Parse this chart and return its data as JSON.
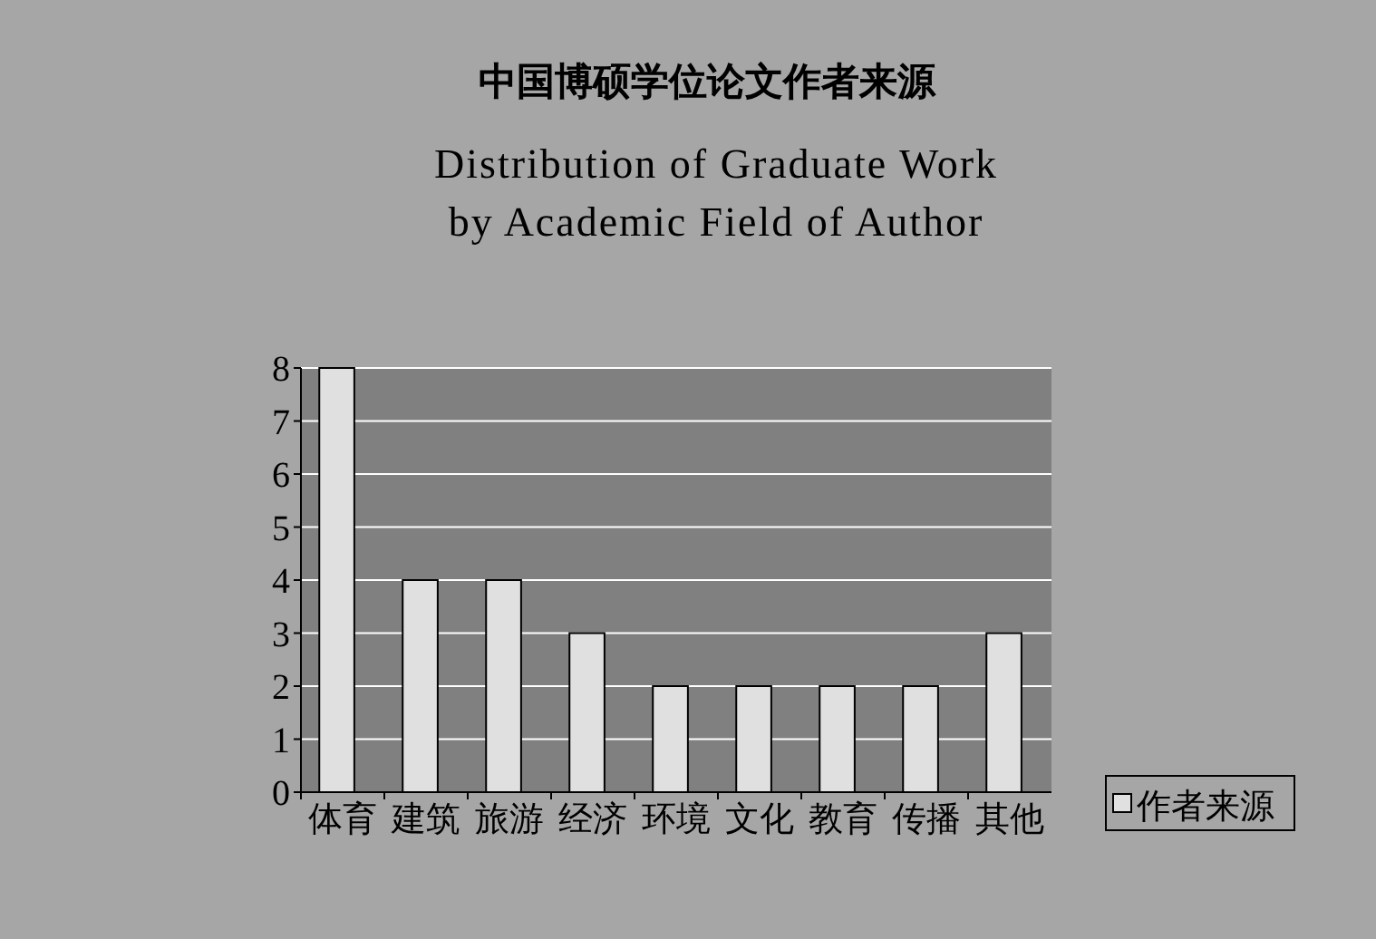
{
  "chart_data": {
    "type": "bar",
    "title": "中国博硕学位论文作者来源",
    "subtitle": "Distribution of Graduate Work\nby Academic Field of Author",
    "categories": [
      "体育",
      "建筑",
      "旅游",
      "经济",
      "环境",
      "文化",
      "教育",
      "传播",
      "其他"
    ],
    "series": [
      {
        "name": "作者来源",
        "color": "#e0e0e0",
        "values": [
          8,
          4,
          4,
          3,
          2,
          2,
          2,
          2,
          3
        ]
      }
    ],
    "ylim": [
      0,
      8
    ],
    "yticks": [
      0,
      1,
      2,
      3,
      4,
      5,
      6,
      7,
      8
    ],
    "grid": "y",
    "legend": "right"
  }
}
